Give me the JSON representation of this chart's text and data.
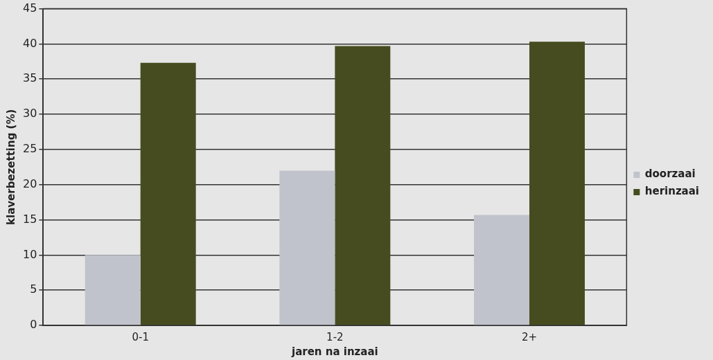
{
  "chart_data": {
    "type": "bar",
    "xlabel": "jaren na inzaai",
    "ylabel": "klaverbezetting (%)",
    "categories": [
      "0-1",
      "1-2",
      "2+"
    ],
    "series": [
      {
        "name": "doorzaai",
        "color": "#c0c3cb",
        "values": [
          10.0,
          22.0,
          15.7
        ]
      },
      {
        "name": "herinzaai",
        "color": "#464c1f",
        "values": [
          37.3,
          39.7,
          40.3
        ]
      }
    ],
    "ylim": [
      0,
      45
    ],
    "yticks": [
      0,
      5,
      10,
      15,
      20,
      25,
      30,
      35,
      40,
      45
    ],
    "grid": "y",
    "legend": "right"
  }
}
